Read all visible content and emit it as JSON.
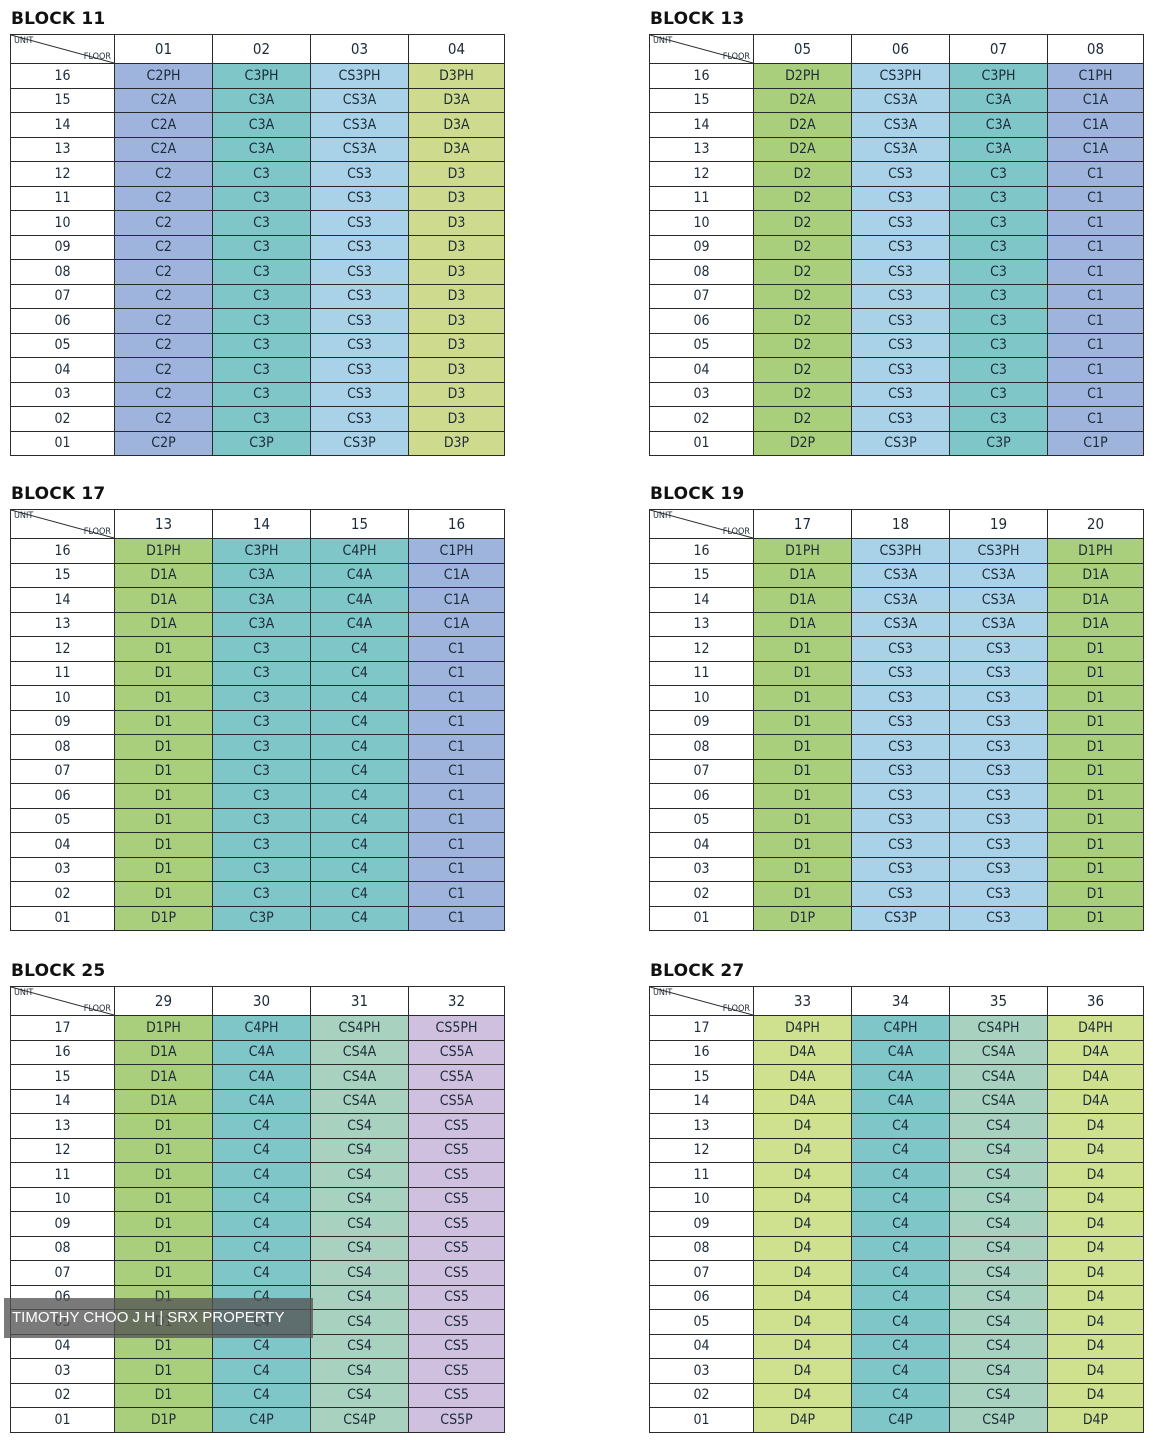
{
  "header_unit": "UNIT",
  "header_floor": "FLOOR",
  "colors": {
    "C": "#9fb4dd",
    "D": "#a9cf7c",
    "CS": "#a9d2e8",
    "CS4": "#a9d1bf",
    "CS5": "#d0c0e0",
    "C3": "#7fc6c9",
    "D3": "#cedb8e",
    "D4": "#cfe08e"
  },
  "blocks": [
    {
      "title": "BLOCK 11",
      "units": [
        "01",
        "02",
        "03",
        "04"
      ],
      "column_types": [
        "C",
        "C3",
        "CS",
        "D3"
      ],
      "rows": [
        {
          "floor": "16",
          "cells": [
            "C2PH",
            "C3PH",
            "CS3PH",
            "D3PH"
          ]
        },
        {
          "floor": "15",
          "cells": [
            "C2A",
            "C3A",
            "CS3A",
            "D3A"
          ]
        },
        {
          "floor": "14",
          "cells": [
            "C2A",
            "C3A",
            "CS3A",
            "D3A"
          ]
        },
        {
          "floor": "13",
          "cells": [
            "C2A",
            "C3A",
            "CS3A",
            "D3A"
          ]
        },
        {
          "floor": "12",
          "cells": [
            "C2",
            "C3",
            "CS3",
            "D3"
          ]
        },
        {
          "floor": "11",
          "cells": [
            "C2",
            "C3",
            "CS3",
            "D3"
          ]
        },
        {
          "floor": "10",
          "cells": [
            "C2",
            "C3",
            "CS3",
            "D3"
          ]
        },
        {
          "floor": "09",
          "cells": [
            "C2",
            "C3",
            "CS3",
            "D3"
          ]
        },
        {
          "floor": "08",
          "cells": [
            "C2",
            "C3",
            "CS3",
            "D3"
          ]
        },
        {
          "floor": "07",
          "cells": [
            "C2",
            "C3",
            "CS3",
            "D3"
          ]
        },
        {
          "floor": "06",
          "cells": [
            "C2",
            "C3",
            "CS3",
            "D3"
          ]
        },
        {
          "floor": "05",
          "cells": [
            "C2",
            "C3",
            "CS3",
            "D3"
          ]
        },
        {
          "floor": "04",
          "cells": [
            "C2",
            "C3",
            "CS3",
            "D3"
          ]
        },
        {
          "floor": "03",
          "cells": [
            "C2",
            "C3",
            "CS3",
            "D3"
          ]
        },
        {
          "floor": "02",
          "cells": [
            "C2",
            "C3",
            "CS3",
            "D3"
          ]
        },
        {
          "floor": "01",
          "cells": [
            "C2P",
            "C3P",
            "CS3P",
            "D3P"
          ]
        }
      ]
    },
    {
      "title": "BLOCK 13",
      "units": [
        "05",
        "06",
        "07",
        "08"
      ],
      "column_types": [
        "D",
        "CS",
        "C3",
        "C"
      ],
      "rows": [
        {
          "floor": "16",
          "cells": [
            "D2PH",
            "CS3PH",
            "C3PH",
            "C1PH"
          ]
        },
        {
          "floor": "15",
          "cells": [
            "D2A",
            "CS3A",
            "C3A",
            "C1A"
          ]
        },
        {
          "floor": "14",
          "cells": [
            "D2A",
            "CS3A",
            "C3A",
            "C1A"
          ]
        },
        {
          "floor": "13",
          "cells": [
            "D2A",
            "CS3A",
            "C3A",
            "C1A"
          ]
        },
        {
          "floor": "12",
          "cells": [
            "D2",
            "CS3",
            "C3",
            "C1"
          ]
        },
        {
          "floor": "11",
          "cells": [
            "D2",
            "CS3",
            "C3",
            "C1"
          ]
        },
        {
          "floor": "10",
          "cells": [
            "D2",
            "CS3",
            "C3",
            "C1"
          ]
        },
        {
          "floor": "09",
          "cells": [
            "D2",
            "CS3",
            "C3",
            "C1"
          ]
        },
        {
          "floor": "08",
          "cells": [
            "D2",
            "CS3",
            "C3",
            "C1"
          ]
        },
        {
          "floor": "07",
          "cells": [
            "D2",
            "CS3",
            "C3",
            "C1"
          ]
        },
        {
          "floor": "06",
          "cells": [
            "D2",
            "CS3",
            "C3",
            "C1"
          ]
        },
        {
          "floor": "05",
          "cells": [
            "D2",
            "CS3",
            "C3",
            "C1"
          ]
        },
        {
          "floor": "04",
          "cells": [
            "D2",
            "CS3",
            "C3",
            "C1"
          ]
        },
        {
          "floor": "03",
          "cells": [
            "D2",
            "CS3",
            "C3",
            "C1"
          ]
        },
        {
          "floor": "02",
          "cells": [
            "D2",
            "CS3",
            "C3",
            "C1"
          ]
        },
        {
          "floor": "01",
          "cells": [
            "D2P",
            "CS3P",
            "C3P",
            "C1P"
          ]
        }
      ]
    },
    {
      "title": "BLOCK 17",
      "units": [
        "13",
        "14",
        "15",
        "16"
      ],
      "column_types": [
        "D",
        "C3",
        "C3",
        "C"
      ],
      "rows": [
        {
          "floor": "16",
          "cells": [
            "D1PH",
            "C3PH",
            "C4PH",
            "C1PH"
          ]
        },
        {
          "floor": "15",
          "cells": [
            "D1A",
            "C3A",
            "C4A",
            "C1A"
          ]
        },
        {
          "floor": "14",
          "cells": [
            "D1A",
            "C3A",
            "C4A",
            "C1A"
          ]
        },
        {
          "floor": "13",
          "cells": [
            "D1A",
            "C3A",
            "C4A",
            "C1A"
          ]
        },
        {
          "floor": "12",
          "cells": [
            "D1",
            "C3",
            "C4",
            "C1"
          ]
        },
        {
          "floor": "11",
          "cells": [
            "D1",
            "C3",
            "C4",
            "C1"
          ]
        },
        {
          "floor": "10",
          "cells": [
            "D1",
            "C3",
            "C4",
            "C1"
          ]
        },
        {
          "floor": "09",
          "cells": [
            "D1",
            "C3",
            "C4",
            "C1"
          ]
        },
        {
          "floor": "08",
          "cells": [
            "D1",
            "C3",
            "C4",
            "C1"
          ]
        },
        {
          "floor": "07",
          "cells": [
            "D1",
            "C3",
            "C4",
            "C1"
          ]
        },
        {
          "floor": "06",
          "cells": [
            "D1",
            "C3",
            "C4",
            "C1"
          ]
        },
        {
          "floor": "05",
          "cells": [
            "D1",
            "C3",
            "C4",
            "C1"
          ]
        },
        {
          "floor": "04",
          "cells": [
            "D1",
            "C3",
            "C4",
            "C1"
          ]
        },
        {
          "floor": "03",
          "cells": [
            "D1",
            "C3",
            "C4",
            "C1"
          ]
        },
        {
          "floor": "02",
          "cells": [
            "D1",
            "C3",
            "C4",
            "C1"
          ]
        },
        {
          "floor": "01",
          "cells": [
            "D1P",
            "C3P",
            "C4",
            "C1"
          ]
        }
      ]
    },
    {
      "title": "BLOCK 19",
      "units": [
        "17",
        "18",
        "19",
        "20"
      ],
      "column_types": [
        "D",
        "CS",
        "CS",
        "D"
      ],
      "rows": [
        {
          "floor": "16",
          "cells": [
            "D1PH",
            "CS3PH",
            "CS3PH",
            "D1PH"
          ]
        },
        {
          "floor": "15",
          "cells": [
            "D1A",
            "CS3A",
            "CS3A",
            "D1A"
          ]
        },
        {
          "floor": "14",
          "cells": [
            "D1A",
            "CS3A",
            "CS3A",
            "D1A"
          ]
        },
        {
          "floor": "13",
          "cells": [
            "D1A",
            "CS3A",
            "CS3A",
            "D1A"
          ]
        },
        {
          "floor": "12",
          "cells": [
            "D1",
            "CS3",
            "CS3",
            "D1"
          ]
        },
        {
          "floor": "11",
          "cells": [
            "D1",
            "CS3",
            "CS3",
            "D1"
          ]
        },
        {
          "floor": "10",
          "cells": [
            "D1",
            "CS3",
            "CS3",
            "D1"
          ]
        },
        {
          "floor": "09",
          "cells": [
            "D1",
            "CS3",
            "CS3",
            "D1"
          ]
        },
        {
          "floor": "08",
          "cells": [
            "D1",
            "CS3",
            "CS3",
            "D1"
          ]
        },
        {
          "floor": "07",
          "cells": [
            "D1",
            "CS3",
            "CS3",
            "D1"
          ]
        },
        {
          "floor": "06",
          "cells": [
            "D1",
            "CS3",
            "CS3",
            "D1"
          ]
        },
        {
          "floor": "05",
          "cells": [
            "D1",
            "CS3",
            "CS3",
            "D1"
          ]
        },
        {
          "floor": "04",
          "cells": [
            "D1",
            "CS3",
            "CS3",
            "D1"
          ]
        },
        {
          "floor": "03",
          "cells": [
            "D1",
            "CS3",
            "CS3",
            "D1"
          ]
        },
        {
          "floor": "02",
          "cells": [
            "D1",
            "CS3",
            "CS3",
            "D1"
          ]
        },
        {
          "floor": "01",
          "cells": [
            "D1P",
            "CS3P",
            "CS3",
            "D1"
          ]
        }
      ]
    },
    {
      "title": "BLOCK 25",
      "units": [
        "29",
        "30",
        "31",
        "32"
      ],
      "column_types": [
        "D",
        "C3",
        "CS4",
        "CS5"
      ],
      "rows": [
        {
          "floor": "17",
          "cells": [
            "D1PH",
            "C4PH",
            "CS4PH",
            "CS5PH"
          ]
        },
        {
          "floor": "16",
          "cells": [
            "D1A",
            "C4A",
            "CS4A",
            "CS5A"
          ]
        },
        {
          "floor": "15",
          "cells": [
            "D1A",
            "C4A",
            "CS4A",
            "CS5A"
          ]
        },
        {
          "floor": "14",
          "cells": [
            "D1A",
            "C4A",
            "CS4A",
            "CS5A"
          ]
        },
        {
          "floor": "13",
          "cells": [
            "D1",
            "C4",
            "CS4",
            "CS5"
          ]
        },
        {
          "floor": "12",
          "cells": [
            "D1",
            "C4",
            "CS4",
            "CS5"
          ]
        },
        {
          "floor": "11",
          "cells": [
            "D1",
            "C4",
            "CS4",
            "CS5"
          ]
        },
        {
          "floor": "10",
          "cells": [
            "D1",
            "C4",
            "CS4",
            "CS5"
          ]
        },
        {
          "floor": "09",
          "cells": [
            "D1",
            "C4",
            "CS4",
            "CS5"
          ]
        },
        {
          "floor": "08",
          "cells": [
            "D1",
            "C4",
            "CS4",
            "CS5"
          ]
        },
        {
          "floor": "07",
          "cells": [
            "D1",
            "C4",
            "CS4",
            "CS5"
          ]
        },
        {
          "floor": "06",
          "cells": [
            "D1",
            "C4",
            "CS4",
            "CS5"
          ]
        },
        {
          "floor": "05",
          "cells": [
            "D1",
            "C4",
            "CS4",
            "CS5"
          ]
        },
        {
          "floor": "04",
          "cells": [
            "D1",
            "C4",
            "CS4",
            "CS5"
          ]
        },
        {
          "floor": "03",
          "cells": [
            "D1",
            "C4",
            "CS4",
            "CS5"
          ]
        },
        {
          "floor": "02",
          "cells": [
            "D1",
            "C4",
            "CS4",
            "CS5"
          ]
        },
        {
          "floor": "01",
          "cells": [
            "D1P",
            "C4P",
            "CS4P",
            "CS5P"
          ]
        }
      ]
    },
    {
      "title": "BLOCK 27",
      "units": [
        "33",
        "34",
        "35",
        "36"
      ],
      "column_types": [
        "D4",
        "C3",
        "CS4",
        "D4"
      ],
      "rows": [
        {
          "floor": "17",
          "cells": [
            "D4PH",
            "C4PH",
            "CS4PH",
            "D4PH"
          ]
        },
        {
          "floor": "16",
          "cells": [
            "D4A",
            "C4A",
            "CS4A",
            "D4A"
          ]
        },
        {
          "floor": "15",
          "cells": [
            "D4A",
            "C4A",
            "CS4A",
            "D4A"
          ]
        },
        {
          "floor": "14",
          "cells": [
            "D4A",
            "C4A",
            "CS4A",
            "D4A"
          ]
        },
        {
          "floor": "13",
          "cells": [
            "D4",
            "C4",
            "CS4",
            "D4"
          ]
        },
        {
          "floor": "12",
          "cells": [
            "D4",
            "C4",
            "CS4",
            "D4"
          ]
        },
        {
          "floor": "11",
          "cells": [
            "D4",
            "C4",
            "CS4",
            "D4"
          ]
        },
        {
          "floor": "10",
          "cells": [
            "D4",
            "C4",
            "CS4",
            "D4"
          ]
        },
        {
          "floor": "09",
          "cells": [
            "D4",
            "C4",
            "CS4",
            "D4"
          ]
        },
        {
          "floor": "08",
          "cells": [
            "D4",
            "C4",
            "CS4",
            "D4"
          ]
        },
        {
          "floor": "07",
          "cells": [
            "D4",
            "C4",
            "CS4",
            "D4"
          ]
        },
        {
          "floor": "06",
          "cells": [
            "D4",
            "C4",
            "CS4",
            "D4"
          ]
        },
        {
          "floor": "05",
          "cells": [
            "D4",
            "C4",
            "CS4",
            "D4"
          ]
        },
        {
          "floor": "04",
          "cells": [
            "D4",
            "C4",
            "CS4",
            "D4"
          ]
        },
        {
          "floor": "03",
          "cells": [
            "D4",
            "C4",
            "CS4",
            "D4"
          ]
        },
        {
          "floor": "02",
          "cells": [
            "D4",
            "C4",
            "CS4",
            "D4"
          ]
        },
        {
          "floor": "01",
          "cells": [
            "D4P",
            "C4P",
            "CS4P",
            "D4P"
          ]
        }
      ]
    }
  ],
  "watermark": "TIMOTHY CHOO J H | SRX PROPERTY"
}
